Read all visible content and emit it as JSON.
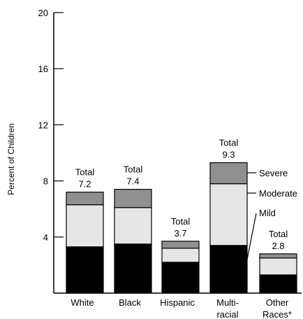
{
  "chart_data": {
    "type": "bar",
    "stacked": true,
    "ylabel": "Percent of Children",
    "xlabel": "",
    "ylim": [
      0,
      20
    ],
    "yticks": [
      4,
      8,
      12,
      16,
      20
    ],
    "categories": [
      [
        "White"
      ],
      [
        "Black"
      ],
      [
        "Hispanic"
      ],
      [
        "Multi-",
        "racial"
      ],
      [
        "Other",
        "Races*"
      ]
    ],
    "series": [
      {
        "name": "Mild",
        "color": "#000000",
        "values": [
          3.3,
          3.5,
          2.2,
          3.4,
          1.3
        ]
      },
      {
        "name": "Moderate",
        "color": "#e6e6e6",
        "values": [
          3.0,
          2.6,
          1.0,
          4.4,
          1.2
        ]
      },
      {
        "name": "Severe",
        "color": "#909090",
        "values": [
          0.9,
          1.3,
          0.5,
          1.5,
          0.3
        ]
      }
    ],
    "total_prefix": "Total",
    "totals": [
      "7.2",
      "7.4",
      "3.7",
      "9.3",
      "2.8"
    ],
    "legend": {
      "placement": "inline-right-of-multiracial-bar",
      "entries": [
        "Severe",
        "Moderate",
        "Mild"
      ]
    },
    "grid": false
  }
}
